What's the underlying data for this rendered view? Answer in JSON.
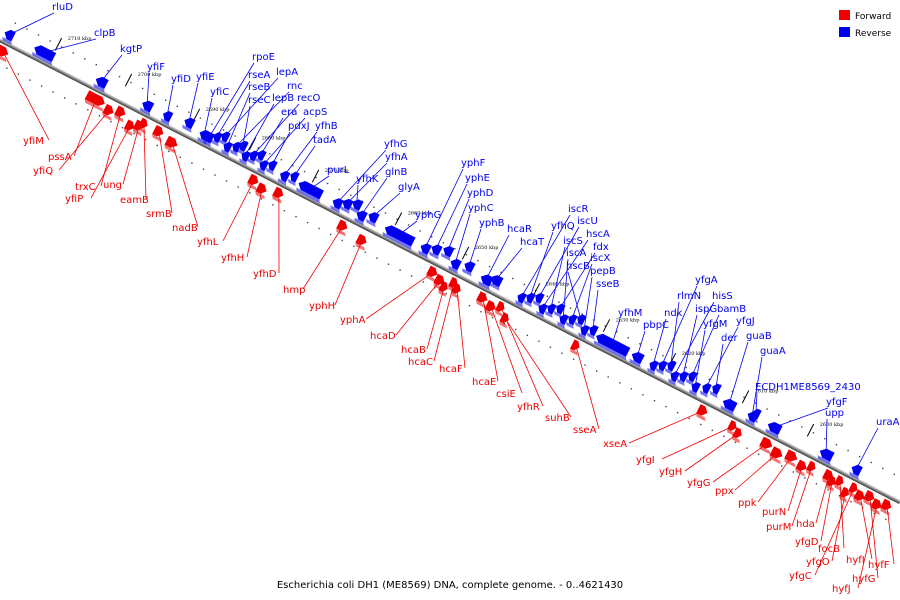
{
  "caption": "Escherichia coli DH1 (ME8569) DNA, complete genome. - 0..4621430",
  "colors": {
    "forward": "#ee0000",
    "reverse": "#0000ee",
    "backbone": "#777777"
  },
  "legend": [
    {
      "label": "Forward",
      "color": "#ee0000"
    },
    {
      "label": "Reverse",
      "color": "#0000ee"
    }
  ],
  "ticks": [
    "2710 kbp",
    "2700 kbp",
    "2690 kbp",
    "2680 kbp",
    "2670 kbp",
    "2660 kbp",
    "2650 kbp",
    "2640 kbp",
    "2630 kbp",
    "2620 kbp",
    "2610 kbp",
    "2600 kbp"
  ],
  "reverse_genes": [
    "rluD",
    "clpB",
    "kgtP",
    "yfiF",
    "yfiD",
    "yfiE",
    "yfiC",
    "rpoE",
    "rseA",
    "lepA",
    "rseB",
    "rnc",
    "rseC",
    "lepB",
    "recO",
    "era",
    "acpS",
    "pdxJ",
    "yfhB",
    "tadA",
    "purL",
    "yfhG",
    "yfhA",
    "yfhK",
    "glnB",
    "glyA",
    "yphG",
    "yphF",
    "yphE",
    "yphD",
    "yphC",
    "yphB",
    "hcaR",
    "hcaT",
    "iscR",
    "yfhQ",
    "iscU",
    "hscA",
    "iscS",
    "fdx",
    "iscA",
    "iscX",
    "hscB",
    "pepB",
    "sseB",
    "yfhM",
    "pbpC",
    "ndk",
    "yfgA",
    "rlmN",
    "hisS",
    "ispG",
    "bamB",
    "yfgM",
    "yfgJ",
    "der",
    "guaB",
    "guaA",
    "ECDH1ME8569_2430",
    "yfgF",
    "upp",
    "uraA"
  ],
  "forward_genes": [
    "yfiM",
    "pssA",
    "yfiQ",
    "trxC",
    "yfiP",
    "ung",
    "eamB",
    "srmB",
    "nadB",
    "yfhL",
    "yfhH",
    "yfhD",
    "hmp",
    "yphH",
    "yphA",
    "hcaD",
    "hcaB",
    "hcaC",
    "hcaF",
    "hcaE",
    "csiE",
    "yfhR",
    "suhB",
    "sseA",
    "xseA",
    "yfgI",
    "yfgH",
    "yfgG",
    "ppx",
    "ppk",
    "purN",
    "purM",
    "hda",
    "yfgD",
    "focB",
    "yfgO",
    "yfgC",
    "hyfI",
    "hyfG",
    "hyfJ",
    "hyfF"
  ]
}
